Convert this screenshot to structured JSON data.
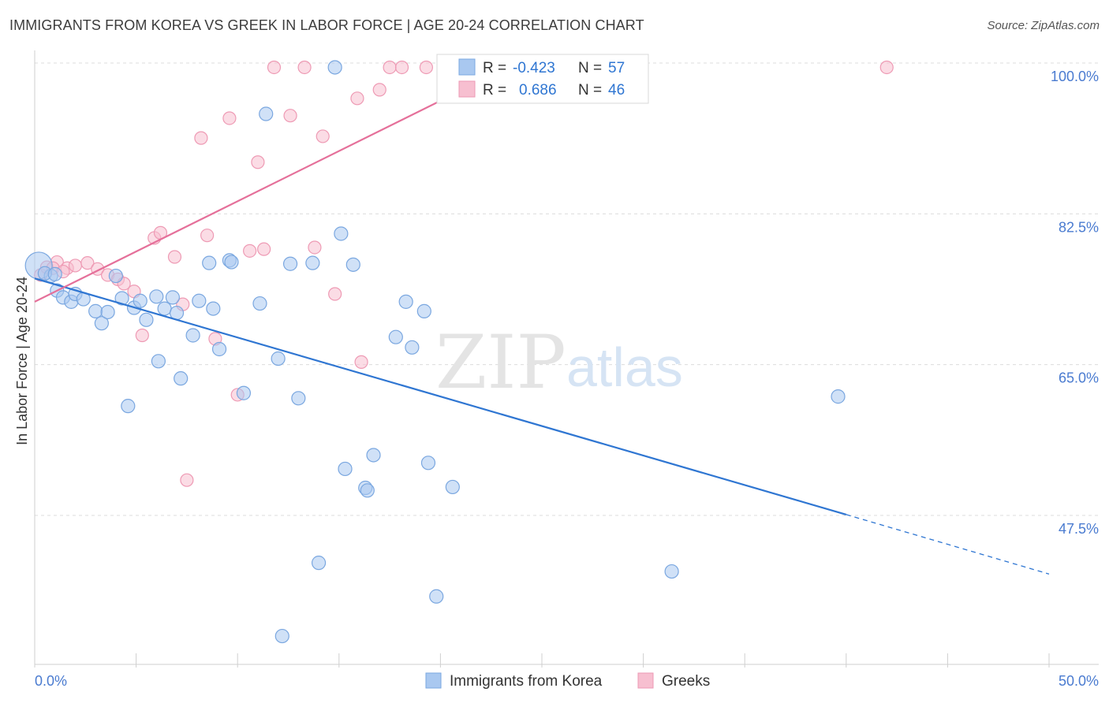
{
  "title": "IMMIGRANTS FROM KOREA VS GREEK IN LABOR FORCE | AGE 20-24 CORRELATION CHART",
  "source": "Source: ZipAtlas.com",
  "watermark": {
    "zip": "ZIP",
    "atlas": "atlas"
  },
  "colors": {
    "blue_fill": "#a9c8f0",
    "blue_stroke": "#7aa7e0",
    "blue_line": "#2f76d2",
    "pink_fill": "#f7bfd0",
    "pink_stroke": "#ee9ab4",
    "pink_line": "#e5709a",
    "tick_text": "#4a7bd0",
    "grid": "#dcdcdc"
  },
  "legend_box": {
    "rows": [
      {
        "r_label": "R =",
        "r_value": "-0.423",
        "n_label": "N =",
        "n_value": "57",
        "series": "blue"
      },
      {
        "r_label": "R =",
        "r_value": "0.686",
        "n_label": "N =",
        "n_value": "46",
        "series": "pink"
      }
    ]
  },
  "chart_data": {
    "type": "scatter",
    "title": "IMMIGRANTS FROM KOREA VS GREEK IN LABOR FORCE | AGE 20-24 CORRELATION CHART",
    "xlabel": "",
    "ylabel": "In Labor Force | Age 20-24",
    "xlim": [
      0,
      50
    ],
    "ylim": [
      33,
      101
    ],
    "x_tick_labels": [
      "0.0%",
      "50.0%"
    ],
    "y_ticks": [
      47.5,
      65.0,
      82.5,
      100.0
    ],
    "y_tick_labels": [
      "47.5%",
      "65.0%",
      "82.5%",
      "100.0%"
    ],
    "grid": true,
    "legend_placement": "top-center",
    "series": [
      {
        "name": "Immigrants from Korea",
        "color": "#a9c8f0",
        "points": [
          [
            0.2,
            76.5
          ],
          [
            0.8,
            75.3
          ],
          [
            1.1,
            73.6
          ],
          [
            1.4,
            72.8
          ],
          [
            1.8,
            72.3
          ],
          [
            2.0,
            73.2
          ],
          [
            2.4,
            72.6
          ],
          [
            3.0,
            71.2
          ],
          [
            3.3,
            69.8
          ],
          [
            3.6,
            71.1
          ],
          [
            4.0,
            75.3
          ],
          [
            4.3,
            72.7
          ],
          [
            4.6,
            60.2
          ],
          [
            4.9,
            71.6
          ],
          [
            5.2,
            72.4
          ],
          [
            5.5,
            70.2
          ],
          [
            6.0,
            72.9
          ],
          [
            6.1,
            65.4
          ],
          [
            6.4,
            71.5
          ],
          [
            6.8,
            72.8
          ],
          [
            7.0,
            71.0
          ],
          [
            7.2,
            63.4
          ],
          [
            7.8,
            68.4
          ],
          [
            8.1,
            72.4
          ],
          [
            8.6,
            76.8
          ],
          [
            8.8,
            71.5
          ],
          [
            9.1,
            66.8
          ],
          [
            9.6,
            77.1
          ],
          [
            9.7,
            76.9
          ],
          [
            10.3,
            61.7
          ],
          [
            11.1,
            72.1
          ],
          [
            11.4,
            94.1
          ],
          [
            12.0,
            65.7
          ],
          [
            12.6,
            76.7
          ],
          [
            13.0,
            61.1
          ],
          [
            13.7,
            76.8
          ],
          [
            14.0,
            42.0
          ],
          [
            14.8,
            99.5
          ],
          [
            15.1,
            80.2
          ],
          [
            15.3,
            52.9
          ],
          [
            15.7,
            76.6
          ],
          [
            16.3,
            50.7
          ],
          [
            16.4,
            50.4
          ],
          [
            16.7,
            54.5
          ],
          [
            17.8,
            68.2
          ],
          [
            18.3,
            72.3
          ],
          [
            18.6,
            67.0
          ],
          [
            19.2,
            71.2
          ],
          [
            19.4,
            53.6
          ],
          [
            19.8,
            38.1
          ],
          [
            20.6,
            50.8
          ],
          [
            23.5,
            99.3
          ],
          [
            31.4,
            41.0
          ],
          [
            39.6,
            61.3
          ],
          [
            12.2,
            33.5
          ],
          [
            0.5,
            75.6
          ],
          [
            1.0,
            75.5
          ]
        ]
      },
      {
        "name": "Greeks",
        "color": "#f7bfd0",
        "points": [
          [
            0.3,
            75.4
          ],
          [
            0.6,
            76.3
          ],
          [
            1.1,
            76.9
          ],
          [
            1.6,
            76.2
          ],
          [
            2.0,
            76.5
          ],
          [
            2.6,
            76.8
          ],
          [
            3.1,
            76.1
          ],
          [
            3.6,
            75.4
          ],
          [
            4.1,
            74.9
          ],
          [
            4.4,
            74.4
          ],
          [
            4.9,
            73.5
          ],
          [
            5.3,
            68.4
          ],
          [
            5.9,
            79.7
          ],
          [
            6.2,
            80.3
          ],
          [
            6.9,
            77.5
          ],
          [
            7.3,
            72.0
          ],
          [
            7.5,
            51.6
          ],
          [
            8.2,
            91.3
          ],
          [
            8.5,
            80.0
          ],
          [
            8.9,
            68.0
          ],
          [
            9.6,
            93.6
          ],
          [
            10.0,
            61.5
          ],
          [
            10.6,
            78.2
          ],
          [
            11.0,
            88.5
          ],
          [
            11.3,
            78.4
          ],
          [
            11.8,
            99.5
          ],
          [
            12.6,
            93.9
          ],
          [
            13.3,
            99.5
          ],
          [
            13.8,
            78.6
          ],
          [
            14.2,
            91.5
          ],
          [
            14.8,
            73.2
          ],
          [
            15.9,
            95.9
          ],
          [
            16.1,
            65.3
          ],
          [
            17.0,
            96.9
          ],
          [
            17.5,
            99.5
          ],
          [
            18.1,
            99.5
          ],
          [
            19.3,
            99.5
          ],
          [
            20.4,
            99.5
          ],
          [
            20.7,
            99.5
          ],
          [
            21.4,
            99.5
          ],
          [
            22.2,
            99.5
          ],
          [
            22.8,
            99.5
          ],
          [
            23.7,
            99.5
          ],
          [
            42.0,
            99.5
          ],
          [
            0.9,
            76.2
          ],
          [
            1.4,
            75.8
          ]
        ]
      }
    ],
    "trend_lines": [
      {
        "series": "Immigrants from Korea",
        "x": [
          0,
          40,
          50
        ],
        "y": [
          75.0,
          47.6,
          40.7
        ],
        "solid_until_x": 40
      },
      {
        "series": "Greeks",
        "x": [
          0,
          23.5
        ],
        "y": [
          72.3,
          99.7
        ]
      }
    ]
  },
  "bottom_legend": [
    {
      "label": "Immigrants from Korea",
      "series": "blue"
    },
    {
      "label": "Greeks",
      "series": "pink"
    }
  ]
}
